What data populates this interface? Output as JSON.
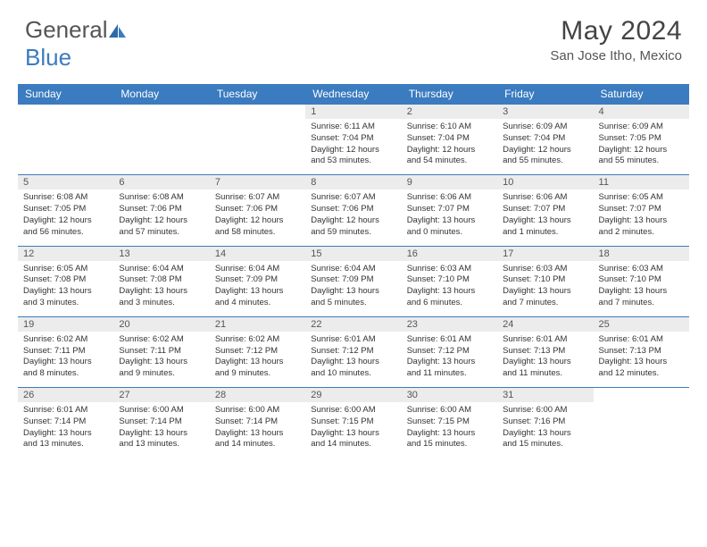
{
  "brand": {
    "part1": "General",
    "part2": "Blue"
  },
  "title": "May 2024",
  "location": "San Jose Itho, Mexico",
  "colors": {
    "header_bg": "#3b7bbf",
    "header_text": "#ffffff",
    "daynum_bg": "#ececec",
    "border": "#3b7bbf",
    "page_bg": "#ffffff",
    "body_text": "#333333"
  },
  "day_headers": [
    "Sunday",
    "Monday",
    "Tuesday",
    "Wednesday",
    "Thursday",
    "Friday",
    "Saturday"
  ],
  "weeks": [
    [
      null,
      null,
      null,
      {
        "n": "1",
        "sr": "6:11 AM",
        "ss": "7:04 PM",
        "dh": "12",
        "dm": "53"
      },
      {
        "n": "2",
        "sr": "6:10 AM",
        "ss": "7:04 PM",
        "dh": "12",
        "dm": "54"
      },
      {
        "n": "3",
        "sr": "6:09 AM",
        "ss": "7:04 PM",
        "dh": "12",
        "dm": "55"
      },
      {
        "n": "4",
        "sr": "6:09 AM",
        "ss": "7:05 PM",
        "dh": "12",
        "dm": "55"
      }
    ],
    [
      {
        "n": "5",
        "sr": "6:08 AM",
        "ss": "7:05 PM",
        "dh": "12",
        "dm": "56"
      },
      {
        "n": "6",
        "sr": "6:08 AM",
        "ss": "7:06 PM",
        "dh": "12",
        "dm": "57"
      },
      {
        "n": "7",
        "sr": "6:07 AM",
        "ss": "7:06 PM",
        "dh": "12",
        "dm": "58"
      },
      {
        "n": "8",
        "sr": "6:07 AM",
        "ss": "7:06 PM",
        "dh": "12",
        "dm": "59"
      },
      {
        "n": "9",
        "sr": "6:06 AM",
        "ss": "7:07 PM",
        "dh": "13",
        "dm": "0"
      },
      {
        "n": "10",
        "sr": "6:06 AM",
        "ss": "7:07 PM",
        "dh": "13",
        "dm": "1"
      },
      {
        "n": "11",
        "sr": "6:05 AM",
        "ss": "7:07 PM",
        "dh": "13",
        "dm": "2"
      }
    ],
    [
      {
        "n": "12",
        "sr": "6:05 AM",
        "ss": "7:08 PM",
        "dh": "13",
        "dm": "3"
      },
      {
        "n": "13",
        "sr": "6:04 AM",
        "ss": "7:08 PM",
        "dh": "13",
        "dm": "3"
      },
      {
        "n": "14",
        "sr": "6:04 AM",
        "ss": "7:09 PM",
        "dh": "13",
        "dm": "4"
      },
      {
        "n": "15",
        "sr": "6:04 AM",
        "ss": "7:09 PM",
        "dh": "13",
        "dm": "5"
      },
      {
        "n": "16",
        "sr": "6:03 AM",
        "ss": "7:10 PM",
        "dh": "13",
        "dm": "6"
      },
      {
        "n": "17",
        "sr": "6:03 AM",
        "ss": "7:10 PM",
        "dh": "13",
        "dm": "7"
      },
      {
        "n": "18",
        "sr": "6:03 AM",
        "ss": "7:10 PM",
        "dh": "13",
        "dm": "7"
      }
    ],
    [
      {
        "n": "19",
        "sr": "6:02 AM",
        "ss": "7:11 PM",
        "dh": "13",
        "dm": "8"
      },
      {
        "n": "20",
        "sr": "6:02 AM",
        "ss": "7:11 PM",
        "dh": "13",
        "dm": "9"
      },
      {
        "n": "21",
        "sr": "6:02 AM",
        "ss": "7:12 PM",
        "dh": "13",
        "dm": "9"
      },
      {
        "n": "22",
        "sr": "6:01 AM",
        "ss": "7:12 PM",
        "dh": "13",
        "dm": "10"
      },
      {
        "n": "23",
        "sr": "6:01 AM",
        "ss": "7:12 PM",
        "dh": "13",
        "dm": "11"
      },
      {
        "n": "24",
        "sr": "6:01 AM",
        "ss": "7:13 PM",
        "dh": "13",
        "dm": "11"
      },
      {
        "n": "25",
        "sr": "6:01 AM",
        "ss": "7:13 PM",
        "dh": "13",
        "dm": "12"
      }
    ],
    [
      {
        "n": "26",
        "sr": "6:01 AM",
        "ss": "7:14 PM",
        "dh": "13",
        "dm": "13"
      },
      {
        "n": "27",
        "sr": "6:00 AM",
        "ss": "7:14 PM",
        "dh": "13",
        "dm": "13"
      },
      {
        "n": "28",
        "sr": "6:00 AM",
        "ss": "7:14 PM",
        "dh": "13",
        "dm": "14"
      },
      {
        "n": "29",
        "sr": "6:00 AM",
        "ss": "7:15 PM",
        "dh": "13",
        "dm": "14"
      },
      {
        "n": "30",
        "sr": "6:00 AM",
        "ss": "7:15 PM",
        "dh": "13",
        "dm": "15"
      },
      {
        "n": "31",
        "sr": "6:00 AM",
        "ss": "7:16 PM",
        "dh": "13",
        "dm": "15"
      },
      null
    ]
  ],
  "labels": {
    "sunrise": "Sunrise:",
    "sunset": "Sunset:",
    "daylight": "Daylight:",
    "hours_word": "hours",
    "and_word": "and",
    "minutes_word": "minutes."
  }
}
